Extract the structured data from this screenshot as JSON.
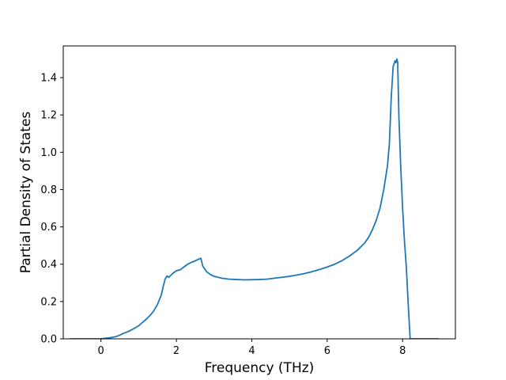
{
  "chart_data": {
    "type": "line",
    "title": "",
    "xlabel": "Frequency (THz)",
    "ylabel": "Partial Density of States",
    "xlim": [
      -1.0,
      9.4
    ],
    "ylim": [
      0.0,
      1.57
    ],
    "xticks": [
      0,
      2,
      4,
      6,
      8
    ],
    "xtick_labels": [
      "0",
      "2",
      "4",
      "6",
      "8"
    ],
    "yticks": [
      0.0,
      0.2,
      0.4,
      0.6,
      0.8,
      1.0,
      1.2,
      1.4
    ],
    "ytick_labels": [
      "0.0",
      "0.2",
      "0.4",
      "0.6",
      "0.8",
      "1.0",
      "1.2",
      "1.4"
    ],
    "grid": false,
    "legend": "none",
    "series": [
      {
        "color": "#1f77b4",
        "x": [
          -0.82,
          -0.6,
          -0.4,
          -0.2,
          0.0,
          0.2,
          0.3,
          0.4,
          0.5,
          0.6,
          0.7,
          0.8,
          0.9,
          1.0,
          1.1,
          1.2,
          1.3,
          1.4,
          1.5,
          1.6,
          1.65,
          1.7,
          1.75,
          1.8,
          1.85,
          1.9,
          2.0,
          2.1,
          2.2,
          2.3,
          2.4,
          2.5,
          2.6,
          2.65,
          2.7,
          2.8,
          2.9,
          3.0,
          3.2,
          3.4,
          3.6,
          3.8,
          4.0,
          4.2,
          4.4,
          4.6,
          4.8,
          5.0,
          5.2,
          5.4,
          5.6,
          5.8,
          6.0,
          6.2,
          6.4,
          6.6,
          6.8,
          7.0,
          7.1,
          7.2,
          7.3,
          7.4,
          7.5,
          7.6,
          7.65,
          7.7,
          7.75,
          7.8,
          7.82,
          7.85,
          7.87,
          7.9,
          7.95,
          8.0,
          8.05,
          8.1,
          8.15,
          8.2,
          8.4,
          8.6,
          8.8,
          8.96
        ],
        "y": [
          0.0,
          0.0,
          0.0,
          0.0,
          0.0,
          0.005,
          0.008,
          0.012,
          0.02,
          0.03,
          0.037,
          0.047,
          0.058,
          0.07,
          0.088,
          0.105,
          0.125,
          0.15,
          0.185,
          0.235,
          0.28,
          0.32,
          0.337,
          0.33,
          0.34,
          0.35,
          0.365,
          0.37,
          0.385,
          0.4,
          0.41,
          0.418,
          0.428,
          0.432,
          0.39,
          0.36,
          0.345,
          0.335,
          0.325,
          0.32,
          0.318,
          0.316,
          0.317,
          0.318,
          0.32,
          0.325,
          0.33,
          0.335,
          0.342,
          0.35,
          0.36,
          0.372,
          0.385,
          0.4,
          0.42,
          0.445,
          0.475,
          0.515,
          0.545,
          0.585,
          0.635,
          0.7,
          0.8,
          0.93,
          1.05,
          1.3,
          1.46,
          1.49,
          1.48,
          1.5,
          1.48,
          1.2,
          0.92,
          0.7,
          0.52,
          0.38,
          0.18,
          0.0,
          0.0,
          0.0,
          0.0,
          0.0
        ]
      }
    ]
  }
}
